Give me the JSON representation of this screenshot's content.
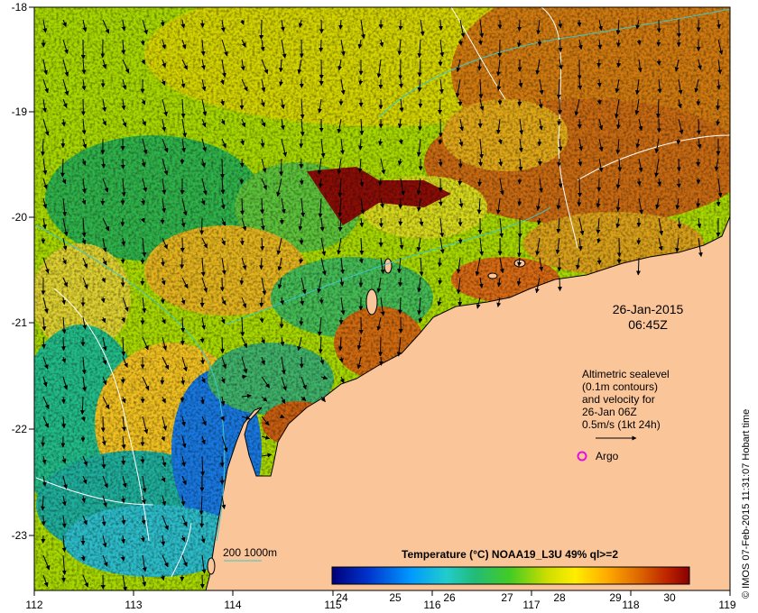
{
  "map": {
    "lon_ticks": [
      "112",
      "113",
      "114",
      "115",
      "116",
      "117",
      "118",
      "119"
    ],
    "lat_ticks": [
      "-18",
      "-19",
      "-20",
      "-21",
      "-22",
      "-23"
    ],
    "date": "26-Jan-2015",
    "time": "06:45Z",
    "legend": {
      "line1": "Altimetric sealevel",
      "line2": "(0.1m contours)",
      "line3": "and velocity for",
      "line4": "26-Jan 06Z",
      "line5": "0.5m/s (1kt 24h)"
    },
    "argo_label": "Argo",
    "depth_label": "200  1000m",
    "colorbar": {
      "title": "Temperature (°C) NOAA19_L3U 49% ql>=2",
      "ticks": [
        "24",
        "25",
        "26",
        "27",
        "28",
        "29",
        "30"
      ]
    },
    "credit": "© IMOS 07-Feb-2015 11:31:07 Hobart time",
    "colors": {
      "land": "#fbc59a",
      "argo": "#e010e0",
      "contour": "#ffffff",
      "depth": "#3cc8c8"
    }
  }
}
